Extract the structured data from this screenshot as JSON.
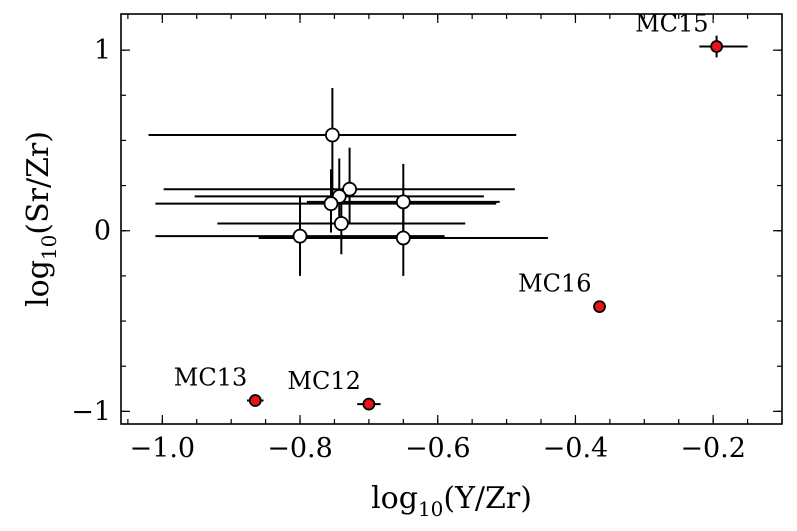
{
  "chart_data": {
    "type": "scatter",
    "title": "",
    "xlabel_parts": [
      "log",
      "10",
      "(Y/Zr)"
    ],
    "ylabel_parts": [
      "log",
      "10",
      "(Sr/Zr)"
    ],
    "xlim": [
      -1.06,
      -0.1
    ],
    "ylim": [
      -1.07,
      1.2
    ],
    "xticks": [
      -1.0,
      -0.8,
      -0.6,
      -0.4,
      -0.2
    ],
    "xtick_labels": [
      "−1.0",
      "−0.8",
      "−0.6",
      "−0.4",
      "−0.2"
    ],
    "yticks": [
      -1,
      0,
      1
    ],
    "ytick_labels": [
      "−1",
      "0",
      "1"
    ],
    "minor_xticks_step": 0.05,
    "minor_yticks_step": 0.25,
    "grid": false,
    "legend": "none",
    "colors": {
      "highlight": "#e8141a",
      "open": "#ffffff",
      "edge": "#000000"
    },
    "series": [
      {
        "marker": "open-circle",
        "points": [
          {
            "x": -0.753,
            "y": 0.53,
            "xerr": [
              0.267,
              0.267
            ],
            "yerr": [
              0.37,
              0.26
            ]
          },
          {
            "x": -0.728,
            "y": 0.23,
            "xerr": [
              0.27,
              0.24
            ],
            "yerr": [
              0.19,
              0.23
            ]
          },
          {
            "x": -0.743,
            "y": 0.19,
            "xerr": [
              0.21,
              0.21
            ],
            "yerr": [
              0.19,
              0.21
            ]
          },
          {
            "x": -0.755,
            "y": 0.15,
            "xerr": [
              0.255,
              0.24
            ],
            "yerr": [
              0.16,
              0.19
            ]
          },
          {
            "x": -0.65,
            "y": 0.16,
            "xerr": [
              0.14,
              0.14
            ],
            "yerr": [
              0.21,
              0.21
            ]
          },
          {
            "x": -0.74,
            "y": 0.04,
            "xerr": [
              0.18,
              0.18
            ],
            "yerr": [
              0.17,
              0.19
            ]
          },
          {
            "x": -0.8,
            "y": -0.03,
            "xerr": [
              0.21,
              0.21
            ],
            "yerr": [
              0.22,
              0.22
            ]
          },
          {
            "x": -0.65,
            "y": -0.04,
            "xerr": [
              0.21,
              0.21
            ],
            "yerr": [
              0.21,
              0.21
            ]
          }
        ]
      },
      {
        "marker": "red-circle",
        "points": [
          {
            "label": "MC15",
            "x": -0.195,
            "y": 1.02,
            "xerr": [
              0.025,
              0.045
            ],
            "yerr": [
              0.06,
              0.06
            ]
          },
          {
            "label": "MC16",
            "x": -0.365,
            "y": -0.42,
            "xerr": [
              0,
              0
            ],
            "yerr": [
              0,
              0
            ]
          },
          {
            "label": "MC13",
            "x": -0.865,
            "y": -0.94,
            "xerr": [
              0.012,
              0.012
            ],
            "yerr": [
              0,
              0
            ]
          },
          {
            "label": "MC12",
            "x": -0.7,
            "y": -0.96,
            "xerr": [
              0.017,
              0.017
            ],
            "yerr": [
              0,
              0
            ]
          }
        ]
      }
    ]
  }
}
